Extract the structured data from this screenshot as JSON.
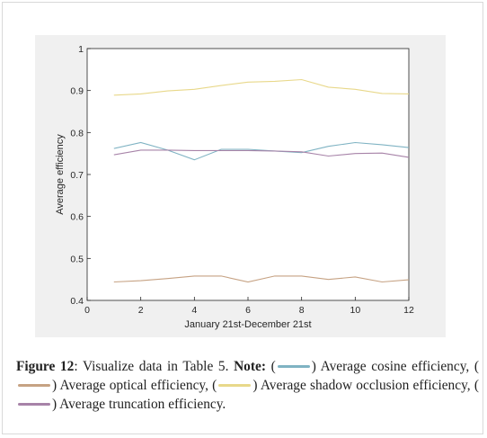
{
  "chart_data": {
    "type": "line",
    "x": [
      1,
      2,
      3,
      4,
      5,
      6,
      7,
      8,
      9,
      10,
      11,
      12
    ],
    "xlim": [
      0,
      12
    ],
    "ylim": [
      0.4,
      1
    ],
    "xticks": [
      "0",
      "2",
      "4",
      "6",
      "8",
      "10",
      "12"
    ],
    "yticks": [
      "0.4",
      "0.5",
      "0.6",
      "0.7",
      "0.8",
      "0.9",
      "1"
    ],
    "xlabel": "January 21st-December 21st",
    "ylabel": "Average efficiency",
    "grid": false,
    "series": [
      {
        "color": "#7fb3c3",
        "values": [
          0.762,
          0.776,
          0.758,
          0.735,
          0.76,
          0.76,
          0.756,
          0.752,
          0.767,
          0.776,
          0.771,
          0.764
        ]
      },
      {
        "color": "#c6a283",
        "values": [
          0.444,
          0.447,
          0.452,
          0.458,
          0.458,
          0.444,
          0.458,
          0.458,
          0.45,
          0.456,
          0.444,
          0.449
        ]
      },
      {
        "color": "#e8d88a",
        "values": [
          0.889,
          0.892,
          0.899,
          0.903,
          0.912,
          0.92,
          0.922,
          0.926,
          0.908,
          0.903,
          0.893,
          0.892
        ]
      },
      {
        "color": "#a783a8",
        "values": [
          0.747,
          0.758,
          0.758,
          0.757,
          0.757,
          0.757,
          0.756,
          0.754,
          0.744,
          0.75,
          0.751,
          0.741
        ]
      }
    ]
  },
  "caption": {
    "label": "Figure 12",
    "text": ": Visualize data in Table 5. ",
    "note_label": "Note:",
    "open_paren": "(",
    "cosine": ") Average cosine efficiency, (",
    "optical": ") Average optical efficiency, (",
    "shadow": ") Average shadow occlusion efficiency, (",
    "truncation": ") Average truncation efficiency."
  }
}
